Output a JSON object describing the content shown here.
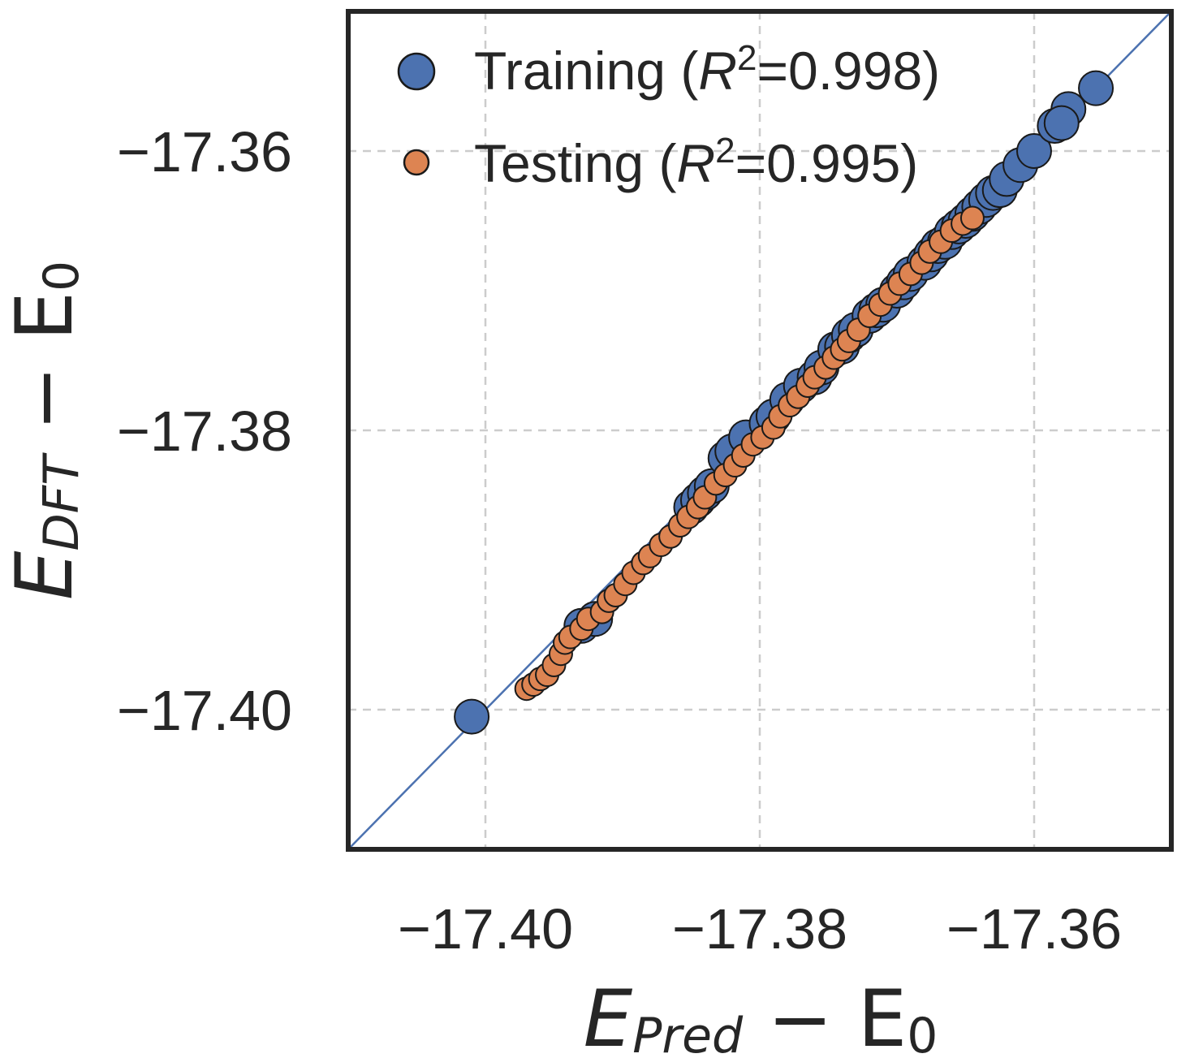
{
  "chart_data": {
    "type": "scatter",
    "title": "",
    "xlabel": {
      "main": "E",
      "sub": "Pred",
      "rest": " − E",
      "sub2": "0"
    },
    "ylabel": {
      "main": "E",
      "sub": "DFT",
      "rest": " − E",
      "sub2": "0"
    },
    "xlim": [
      -17.41,
      -17.35
    ],
    "ylim": [
      -17.41,
      -17.35
    ],
    "grid": true,
    "xticks": [
      -17.4,
      -17.38,
      -17.36
    ],
    "yticks": [
      -17.4,
      -17.38,
      -17.36
    ],
    "xtick_labels": [
      "−17.40",
      "−17.38",
      "−17.36"
    ],
    "ytick_labels": [
      "−17.40",
      "−17.38",
      "−17.36"
    ],
    "reference_line": "y = x",
    "legend_position": "top-left",
    "series": [
      {
        "name": "Training",
        "label_prefix": "Training (",
        "label_r": "R",
        "label_sup": "2",
        "label_value": "=0.998)",
        "color": "#4c72b0",
        "points": [
          [
            -17.401,
            -17.4005
          ],
          [
            -17.393,
            -17.394
          ],
          [
            -17.392,
            -17.3935
          ],
          [
            -17.385,
            -17.3855
          ],
          [
            -17.3845,
            -17.385
          ],
          [
            -17.384,
            -17.3845
          ],
          [
            -17.3835,
            -17.384
          ],
          [
            -17.3825,
            -17.382
          ],
          [
            -17.382,
            -17.3815
          ],
          [
            -17.381,
            -17.3805
          ],
          [
            -17.3795,
            -17.3795
          ],
          [
            -17.379,
            -17.379
          ],
          [
            -17.378,
            -17.3778
          ],
          [
            -17.377,
            -17.3768
          ],
          [
            -17.376,
            -17.3762
          ],
          [
            -17.3755,
            -17.3755
          ],
          [
            -17.3745,
            -17.3742
          ],
          [
            -17.374,
            -17.374
          ],
          [
            -17.3735,
            -17.3732
          ],
          [
            -17.373,
            -17.3728
          ],
          [
            -17.372,
            -17.3718
          ],
          [
            -17.3715,
            -17.3714
          ],
          [
            -17.371,
            -17.371
          ],
          [
            -17.37,
            -17.37
          ],
          [
            -17.3695,
            -17.3694
          ],
          [
            -17.369,
            -17.3688
          ],
          [
            -17.368,
            -17.368
          ],
          [
            -17.3675,
            -17.3674
          ],
          [
            -17.367,
            -17.3668
          ],
          [
            -17.3665,
            -17.3665
          ],
          [
            -17.366,
            -17.3658
          ],
          [
            -17.3655,
            -17.3654
          ],
          [
            -17.365,
            -17.365
          ],
          [
            -17.3645,
            -17.3645
          ],
          [
            -17.364,
            -17.364
          ],
          [
            -17.3635,
            -17.3635
          ],
          [
            -17.363,
            -17.363
          ],
          [
            -17.3625,
            -17.3628
          ],
          [
            -17.362,
            -17.362
          ],
          [
            -17.361,
            -17.361
          ],
          [
            -17.36,
            -17.36
          ],
          [
            -17.3585,
            -17.3582
          ],
          [
            -17.3575,
            -17.357
          ],
          [
            -17.358,
            -17.358
          ],
          [
            -17.3555,
            -17.3555
          ]
        ]
      },
      {
        "name": "Testing",
        "label_prefix": "Testing (",
        "label_r": "R",
        "label_sup": "2",
        "label_value": "=0.995)",
        "color": "#dd8452",
        "points": [
          [
            -17.397,
            -17.3985
          ],
          [
            -17.3965,
            -17.3982
          ],
          [
            -17.396,
            -17.3978
          ],
          [
            -17.3955,
            -17.3975
          ],
          [
            -17.395,
            -17.3968
          ],
          [
            -17.3945,
            -17.396
          ],
          [
            -17.3942,
            -17.3952
          ],
          [
            -17.3938,
            -17.3948
          ],
          [
            -17.393,
            -17.3942
          ],
          [
            -17.3925,
            -17.3935
          ],
          [
            -17.3915,
            -17.393
          ],
          [
            -17.391,
            -17.3922
          ],
          [
            -17.3905,
            -17.3918
          ],
          [
            -17.3898,
            -17.391
          ],
          [
            -17.3892,
            -17.3902
          ],
          [
            -17.3885,
            -17.3895
          ],
          [
            -17.388,
            -17.389
          ],
          [
            -17.3872,
            -17.3882
          ],
          [
            -17.3865,
            -17.3876
          ],
          [
            -17.3858,
            -17.3868
          ],
          [
            -17.3852,
            -17.3862
          ],
          [
            -17.3845,
            -17.3855
          ],
          [
            -17.384,
            -17.3848
          ],
          [
            -17.3832,
            -17.3838
          ],
          [
            -17.3825,
            -17.3832
          ],
          [
            -17.3818,
            -17.3825
          ],
          [
            -17.3812,
            -17.3818
          ],
          [
            -17.3805,
            -17.381
          ],
          [
            -17.3798,
            -17.3805
          ],
          [
            -17.379,
            -17.3798
          ],
          [
            -17.3785,
            -17.379
          ],
          [
            -17.3778,
            -17.3782
          ],
          [
            -17.3772,
            -17.3776
          ],
          [
            -17.3765,
            -17.3768
          ],
          [
            -17.376,
            -17.3762
          ],
          [
            -17.3752,
            -17.3755
          ],
          [
            -17.3746,
            -17.3748
          ],
          [
            -17.374,
            -17.3742
          ],
          [
            -17.3735,
            -17.3736
          ],
          [
            -17.3728,
            -17.3728
          ],
          [
            -17.372,
            -17.3718
          ],
          [
            -17.3712,
            -17.371
          ],
          [
            -17.3705,
            -17.3702
          ],
          [
            -17.3698,
            -17.3695
          ],
          [
            -17.369,
            -17.3688
          ],
          [
            -17.3682,
            -17.368
          ],
          [
            -17.3676,
            -17.3672
          ],
          [
            -17.3668,
            -17.3665
          ],
          [
            -17.366,
            -17.3657
          ],
          [
            -17.3652,
            -17.3652
          ],
          [
            -17.3645,
            -17.3648
          ]
        ]
      }
    ]
  }
}
